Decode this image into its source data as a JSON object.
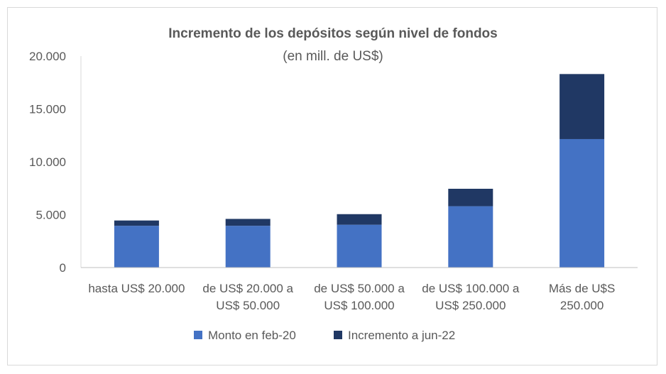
{
  "chart_data": {
    "type": "bar",
    "stacked": true,
    "title": "Incremento de los depósitos según nivel de fondos",
    "subtitle": "(en mill. de US$)",
    "categories": [
      [
        "hasta US$ 20.000"
      ],
      [
        "de US$ 20.000 a",
        "US$ 50.000"
      ],
      [
        "de US$ 50.000 a",
        "US$ 100.000"
      ],
      [
        "de US$ 100.000 a",
        "US$ 250.000"
      ],
      [
        "Más de U$S",
        "250.000"
      ]
    ],
    "series": [
      {
        "name": "Monto en feb-20",
        "color": "#4472c4",
        "values": [
          3950,
          3950,
          4050,
          5800,
          12150
        ]
      },
      {
        "name": "Incremento a jun-22",
        "color": "#203864",
        "values": [
          500,
          650,
          1000,
          1650,
          6150
        ]
      }
    ],
    "ylim": [
      0,
      20000
    ],
    "yticks": [
      "0",
      "5.000",
      "10.000",
      "15.000",
      "20.000"
    ],
    "ytick_values": [
      0,
      5000,
      10000,
      15000,
      20000
    ],
    "grid": false,
    "legend_position": "bottom"
  }
}
